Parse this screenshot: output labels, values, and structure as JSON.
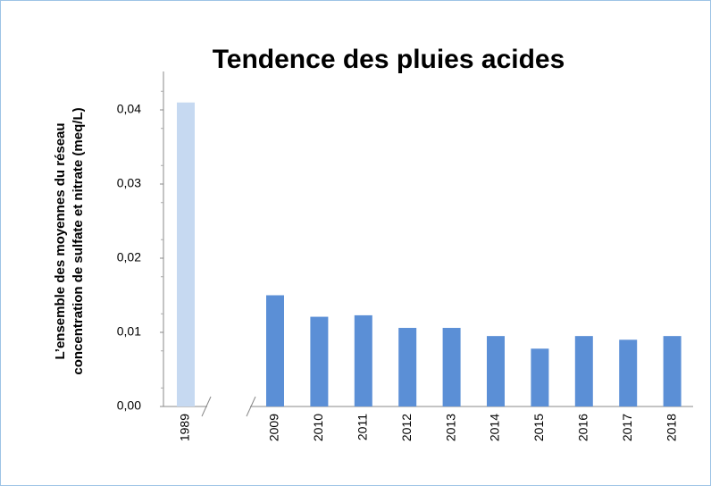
{
  "chart_data": {
    "type": "bar",
    "title": "Tendence des pluies acides",
    "y_label": [
      "L’ensemble des moyennes du réseau",
      "concentration de sulfate et nitrate (meq/L)"
    ],
    "categories": [
      "1989",
      "2009",
      "2010",
      "2011",
      "2012",
      "2013",
      "2014",
      "2015",
      "2016",
      "2017",
      "2018"
    ],
    "values": [
      0.041,
      0.015,
      0.0121,
      0.0123,
      0.0106,
      0.0106,
      0.0095,
      0.0078,
      0.0095,
      0.009,
      0.0095
    ],
    "colors": [
      "#c6d9f1",
      "#5b8fd6",
      "#5b8fd6",
      "#5b8fd6",
      "#5b8fd6",
      "#5b8fd6",
      "#5b8fd6",
      "#5b8fd6",
      "#5b8fd6",
      "#5b8fd6",
      "#5b8fd6"
    ],
    "ylim": [
      0,
      0.045
    ],
    "yticks": [
      {
        "value": 0,
        "label": "0,00"
      },
      {
        "value": 0.01,
        "label": "0,01"
      },
      {
        "value": 0.02,
        "label": "0,02"
      },
      {
        "value": 0.03,
        "label": "0,03"
      },
      {
        "value": 0.04,
        "label": "0,04"
      }
    ],
    "grid": false
  }
}
